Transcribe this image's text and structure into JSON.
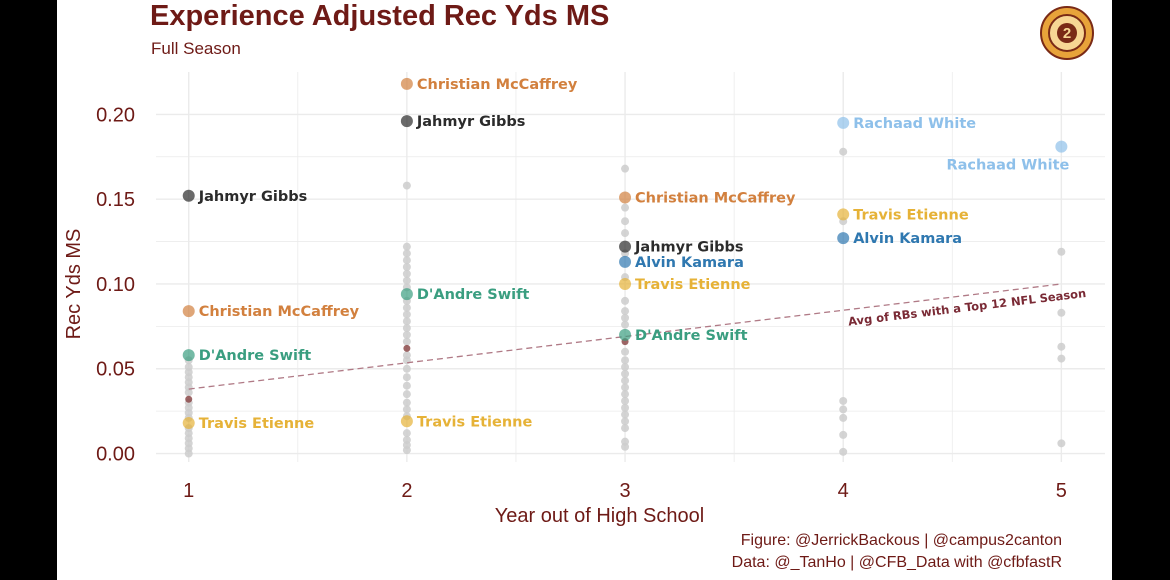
{
  "header": {
    "title": "Experience Adjusted Rec Yds MS",
    "subtitle": "Full Season"
  },
  "caption": {
    "line1": "Figure: @JerrickBackous | @campus2canton",
    "line2": "Data: @_TanHo | @CFB_Data with @cfbfastR"
  },
  "logo": {
    "icon": "campus2canton-logo-icon",
    "color": "#e8a33a",
    "inner_text": "2"
  },
  "colors": {
    "background": "#ffffff",
    "text": "#6e1a16",
    "grid": "#ebebeb",
    "other_points": "#cccccc",
    "trend": "#b07a86",
    "avg_point": "#8c4a4a"
  },
  "chart_data": {
    "type": "scatter",
    "title": "Experience Adjusted Rec Yds MS",
    "subtitle": "Full Season",
    "xlabel": "Year out of High School",
    "ylabel": "Rec Yds MS",
    "xlim": [
      0.85,
      5.2
    ],
    "ylim": [
      -0.005,
      0.225
    ],
    "x_ticks": [
      1,
      2,
      3,
      4,
      5
    ],
    "y_ticks": [
      0.0,
      0.05,
      0.1,
      0.15,
      0.2
    ],
    "y_tick_labels": [
      "0.00",
      "0.05",
      "0.10",
      "0.15",
      "0.20"
    ],
    "grid": true,
    "series": [
      {
        "name": "Christian McCaffrey",
        "color": "#d2803e",
        "points": [
          {
            "x": 1,
            "y": 0.084,
            "label": "Christian McCaffrey"
          },
          {
            "x": 2,
            "y": 0.218,
            "label": "Christian McCaffrey"
          },
          {
            "x": 3,
            "y": 0.151,
            "label": "Christian McCaffrey"
          }
        ]
      },
      {
        "name": "Jahmyr Gibbs",
        "color": "#2b2b2b",
        "points": [
          {
            "x": 1,
            "y": 0.152,
            "label": "Jahmyr Gibbs"
          },
          {
            "x": 2,
            "y": 0.196,
            "label": "Jahmyr Gibbs"
          },
          {
            "x": 3,
            "y": 0.122,
            "label": "Jahmyr Gibbs"
          }
        ]
      },
      {
        "name": "D'Andre Swift",
        "color": "#3a9e80",
        "points": [
          {
            "x": 1,
            "y": 0.058,
            "label": "D'Andre Swift"
          },
          {
            "x": 2,
            "y": 0.094,
            "label": "D'Andre Swift"
          },
          {
            "x": 3,
            "y": 0.07,
            "label": "D'Andre Swift"
          }
        ]
      },
      {
        "name": "Travis Etienne",
        "color": "#e6b237",
        "points": [
          {
            "x": 1,
            "y": 0.018,
            "label": "Travis Etienne"
          },
          {
            "x": 2,
            "y": 0.019,
            "label": "Travis Etienne"
          },
          {
            "x": 3,
            "y": 0.1,
            "label": "Travis Etienne"
          },
          {
            "x": 4,
            "y": 0.141,
            "label": "Travis Etienne"
          }
        ]
      },
      {
        "name": "Alvin Kamara",
        "color": "#2f78b0",
        "points": [
          {
            "x": 3,
            "y": 0.113,
            "label": "Alvin Kamara"
          },
          {
            "x": 4,
            "y": 0.127,
            "label": "Alvin Kamara"
          }
        ]
      },
      {
        "name": "Rachaad White",
        "color": "#8ec0ea",
        "points": [
          {
            "x": 4,
            "y": 0.195,
            "label": "Rachaad White"
          },
          {
            "x": 5,
            "y": 0.181,
            "label": "Rachaad White"
          }
        ]
      }
    ],
    "other_players": [
      {
        "x": 1,
        "values": [
          0.0,
          0.003,
          0.006,
          0.009,
          0.012,
          0.015,
          0.021,
          0.024,
          0.027,
          0.03,
          0.036,
          0.039,
          0.042,
          0.045,
          0.048,
          0.051,
          0.055
        ]
      },
      {
        "x": 2,
        "values": [
          0.002,
          0.005,
          0.008,
          0.012,
          0.022,
          0.026,
          0.03,
          0.035,
          0.04,
          0.045,
          0.05,
          0.055,
          0.058,
          0.066,
          0.07,
          0.074,
          0.078,
          0.082,
          0.086,
          0.09,
          0.098,
          0.102,
          0.106,
          0.11,
          0.114,
          0.118,
          0.122,
          0.158
        ]
      },
      {
        "x": 3,
        "values": [
          0.004,
          0.007,
          0.015,
          0.019,
          0.023,
          0.027,
          0.031,
          0.035,
          0.039,
          0.043,
          0.047,
          0.051,
          0.055,
          0.06,
          0.076,
          0.08,
          0.084,
          0.09,
          0.104,
          0.118,
          0.13,
          0.137,
          0.145,
          0.168
        ]
      },
      {
        "x": 4,
        "values": [
          0.001,
          0.011,
          0.021,
          0.026,
          0.031,
          0.137,
          0.178
        ]
      },
      {
        "x": 5,
        "values": [
          0.006,
          0.056,
          0.063,
          0.083,
          0.119
        ]
      }
    ],
    "avg_points": [
      {
        "x": 1,
        "y": 0.032
      },
      {
        "x": 2,
        "y": 0.062
      },
      {
        "x": 3,
        "y": 0.066
      }
    ],
    "trend_line": {
      "label": "Avg of RBs with a Top 12 NFL Season",
      "x": [
        1,
        5
      ],
      "y": [
        0.038,
        0.1
      ]
    }
  }
}
